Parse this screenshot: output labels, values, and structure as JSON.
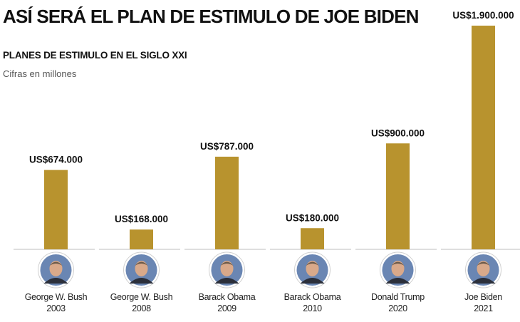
{
  "header": {
    "title": "ASÍ SERÁ EL PLAN DE ESTIMULO DE JOE BIDEN",
    "subtitle": "PLANES DE ESTIMULO EN EL SIGLO XXI",
    "units": "Cifras en millones"
  },
  "colors": {
    "bar": "#B8932E",
    "axis": "#bdbdbd",
    "avatar_bg": "#6a86b3"
  },
  "chart_data": {
    "type": "bar",
    "title": "PLANES DE ESTIMULO EN EL SIGLO XXI",
    "ylabel": "Cifras en millones",
    "xlabel": "",
    "ylim": [
      0,
      1900000
    ],
    "grid": false,
    "categories": [
      {
        "name": "George W. Bush",
        "year": "2003"
      },
      {
        "name": "George W. Bush",
        "year": "2008"
      },
      {
        "name": "Barack Obama",
        "year": "2009"
      },
      {
        "name": "Barack Obama",
        "year": "2010"
      },
      {
        "name": "Donald Trump",
        "year": "2020"
      },
      {
        "name": "Joe Biden",
        "year": "2021"
      }
    ],
    "values": [
      674000,
      168000,
      787000,
      180000,
      900000,
      1900000
    ],
    "labels": [
      "US$674.000",
      "US$168.000",
      "US$787.000",
      "US$180.000",
      "US$900.000",
      "US$1.900.000"
    ],
    "icons": [
      "portrait-icon",
      "portrait-icon",
      "portrait-icon",
      "portrait-icon",
      "portrait-icon",
      "portrait-icon"
    ]
  }
}
